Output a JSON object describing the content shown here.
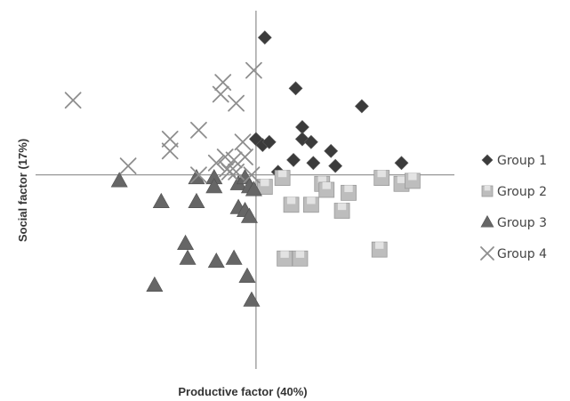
{
  "chart_data": {
    "type": "scatter",
    "xlabel": "Productive factor (40%)",
    "ylabel": "Social factor (17%)",
    "xlim": [
      -1.0,
      0.9
    ],
    "ylim": [
      -0.65,
      0.55
    ],
    "grid": false,
    "axes_cross_at_origin": true,
    "legend_position": "right",
    "series": [
      {
        "name": "Group 1",
        "marker": "diamond",
        "color": "#3b3b3b",
        "points": [
          [
            0.04,
            0.46
          ],
          [
            0.18,
            0.29
          ],
          [
            0.48,
            0.23
          ],
          [
            0.21,
            0.16
          ],
          [
            0.21,
            0.12
          ],
          [
            0.0,
            0.12
          ],
          [
            0.03,
            0.1
          ],
          [
            0.06,
            0.11
          ],
          [
            0.21,
            0.12
          ],
          [
            0.25,
            0.11
          ],
          [
            0.34,
            0.08
          ],
          [
            0.17,
            0.05
          ],
          [
            0.26,
            0.04
          ],
          [
            0.36,
            0.03
          ],
          [
            0.66,
            0.04
          ],
          [
            0.1,
            0.01
          ]
        ]
      },
      {
        "name": "Group 2",
        "marker": "square",
        "color": "#bdbdbd",
        "points": [
          [
            0.12,
            -0.01
          ],
          [
            0.04,
            -0.04
          ],
          [
            0.3,
            -0.03
          ],
          [
            0.57,
            -0.01
          ],
          [
            0.66,
            -0.03
          ],
          [
            0.71,
            -0.02
          ],
          [
            0.32,
            -0.05
          ],
          [
            0.42,
            -0.06
          ],
          [
            0.16,
            -0.1
          ],
          [
            0.25,
            -0.1
          ],
          [
            0.39,
            -0.12
          ],
          [
            0.56,
            -0.25
          ],
          [
            0.13,
            -0.28
          ],
          [
            0.2,
            -0.28
          ]
        ]
      },
      {
        "name": "Group 3",
        "marker": "triangle",
        "color": "#666666",
        "points": [
          [
            -0.62,
            -0.02
          ],
          [
            -0.27,
            -0.01
          ],
          [
            -0.19,
            -0.01
          ],
          [
            -0.08,
            -0.03
          ],
          [
            -0.05,
            -0.01
          ],
          [
            -0.03,
            -0.04
          ],
          [
            -0.01,
            -0.05
          ],
          [
            -0.19,
            -0.04
          ],
          [
            -0.43,
            -0.09
          ],
          [
            -0.27,
            -0.09
          ],
          [
            -0.08,
            -0.11
          ],
          [
            -0.05,
            -0.12
          ],
          [
            -0.03,
            -0.14
          ],
          [
            -0.32,
            -0.23
          ],
          [
            -0.31,
            -0.28
          ],
          [
            -0.18,
            -0.29
          ],
          [
            -0.1,
            -0.28
          ],
          [
            -0.04,
            -0.34
          ],
          [
            -0.46,
            -0.37
          ],
          [
            -0.02,
            -0.42
          ]
        ]
      },
      {
        "name": "Group 4",
        "marker": "cross",
        "color": "#8e8e8e",
        "points": [
          [
            -0.83,
            0.25
          ],
          [
            -0.15,
            0.31
          ],
          [
            -0.16,
            0.27
          ],
          [
            -0.09,
            0.24
          ],
          [
            -0.01,
            0.35
          ],
          [
            -0.26,
            0.15
          ],
          [
            -0.39,
            0.12
          ],
          [
            -0.39,
            0.08
          ],
          [
            -0.06,
            0.11
          ],
          [
            -0.05,
            0.06
          ],
          [
            -0.14,
            0.06
          ],
          [
            -0.1,
            0.05
          ],
          [
            -0.18,
            0.04
          ],
          [
            -0.12,
            0.01
          ],
          [
            -0.58,
            0.03
          ],
          [
            -0.26,
            0.0
          ],
          [
            -0.13,
            0.02
          ],
          [
            -0.09,
            0.01
          ],
          [
            -0.02,
            0.0
          ]
        ]
      }
    ]
  }
}
